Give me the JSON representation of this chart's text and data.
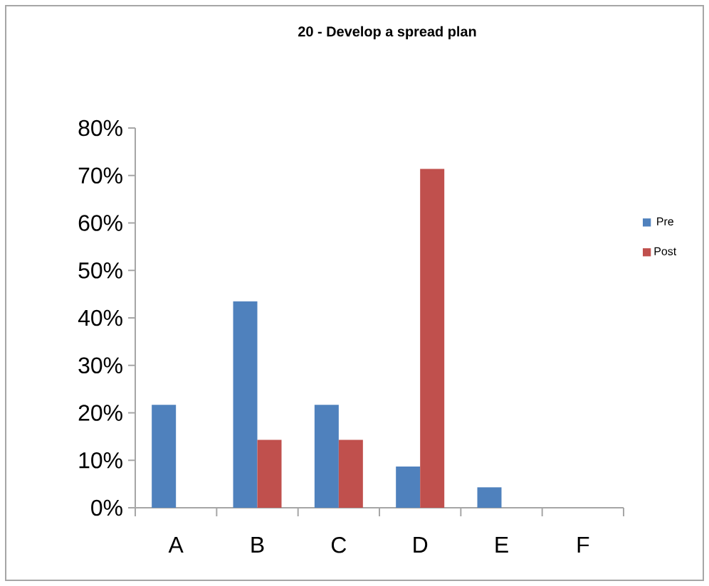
{
  "chart_data": {
    "type": "bar",
    "title": "20 - Develop a spread plan",
    "categories": [
      "A",
      "B",
      "C",
      "D",
      "E",
      "F"
    ],
    "series": [
      {
        "name": "Pre",
        "color": "#4f81bd",
        "values": [
          21.7,
          43.5,
          21.7,
          8.7,
          4.3,
          0
        ]
      },
      {
        "name": "Post",
        "color": "#c0504d",
        "values": [
          0,
          14.3,
          14.3,
          71.4,
          0,
          0
        ]
      }
    ],
    "ylim": [
      0,
      80
    ],
    "yticks": [
      {
        "value": 0,
        "label": "0%"
      },
      {
        "value": 10,
        "label": "10%"
      },
      {
        "value": 20,
        "label": "20%"
      },
      {
        "value": 30,
        "label": "30%"
      },
      {
        "value": 40,
        "label": "40%"
      },
      {
        "value": 50,
        "label": "50%"
      },
      {
        "value": 60,
        "label": "60%"
      },
      {
        "value": 70,
        "label": "70%"
      },
      {
        "value": 80,
        "label": "80%"
      }
    ],
    "grid": false,
    "legend": "right"
  }
}
